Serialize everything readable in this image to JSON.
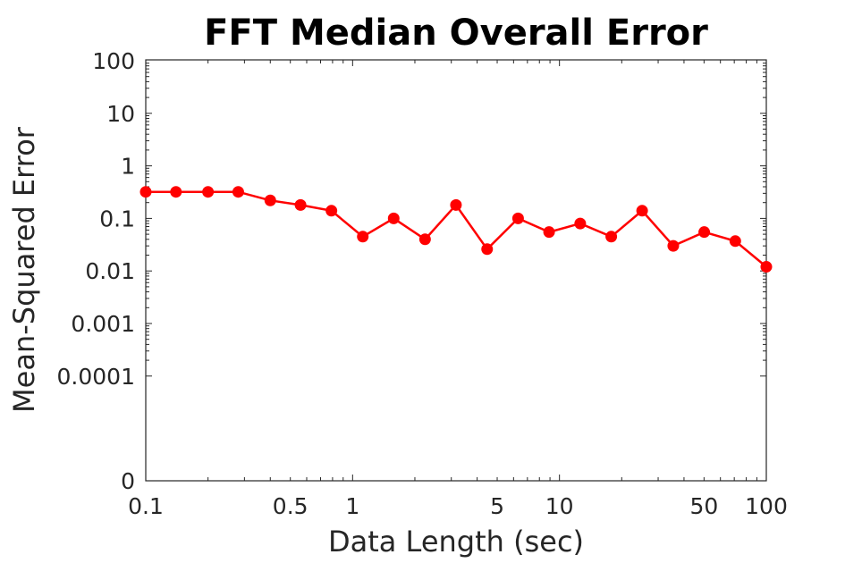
{
  "chart_data": {
    "type": "line",
    "title": "FFT Median Overall Error",
    "xlabel": "Data Length (sec)",
    "ylabel": "Mean-Squared Error",
    "xscale": "log",
    "yscale": "log",
    "xlim": [
      0.1,
      100
    ],
    "ylim_display": [
      "0",
      "100"
    ],
    "grid": false,
    "x_ticks": [
      {
        "value": 0.1,
        "label": "0.1"
      },
      {
        "value": 0.5,
        "label": "0.5"
      },
      {
        "value": 1,
        "label": "1"
      },
      {
        "value": 5,
        "label": "5"
      },
      {
        "value": 10,
        "label": "10"
      },
      {
        "value": 50,
        "label": "50"
      },
      {
        "value": 100,
        "label": "100"
      }
    ],
    "y_ticks": [
      {
        "value": 100,
        "label": "100"
      },
      {
        "value": 10,
        "label": "10"
      },
      {
        "value": 1,
        "label": "1"
      },
      {
        "value": 0.1,
        "label": "0.1"
      },
      {
        "value": 0.01,
        "label": "0.01"
      },
      {
        "value": 0.001,
        "label": "0.001"
      },
      {
        "value": 0.0001,
        "label": "0.0001"
      },
      {
        "value": 0,
        "label": "0"
      }
    ],
    "series": [
      {
        "color": "#ff0000",
        "marker": "circle",
        "x": [
          0.1,
          0.14,
          0.2,
          0.28,
          0.4,
          0.56,
          0.79,
          1.12,
          1.58,
          2.24,
          3.16,
          4.47,
          6.31,
          8.91,
          12.6,
          17.8,
          25.1,
          35.5,
          50.1,
          70.8,
          100
        ],
        "y": [
          0.32,
          0.32,
          0.32,
          0.32,
          0.22,
          0.18,
          0.14,
          0.045,
          0.1,
          0.04,
          0.18,
          0.026,
          0.1,
          0.055,
          0.08,
          0.045,
          0.14,
          0.03,
          0.055,
          0.037,
          0.012
        ]
      }
    ]
  }
}
